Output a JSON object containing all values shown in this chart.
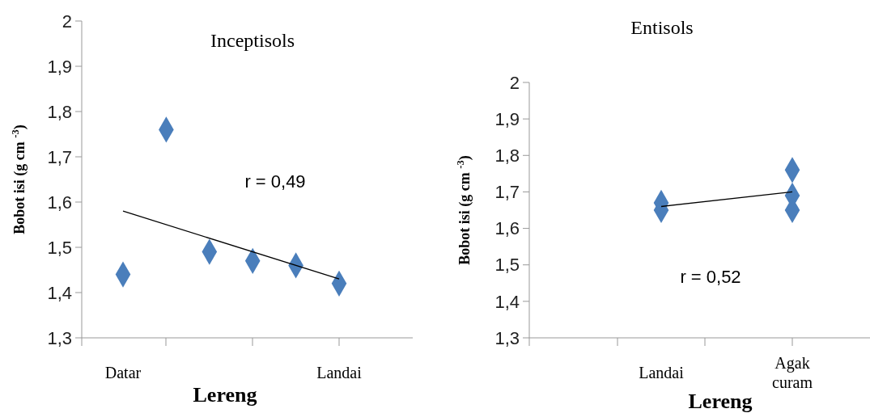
{
  "chart_data": [
    {
      "type": "scatter",
      "title": "Inceptisols",
      "xlabel": "Lereng",
      "ylabel": "Bobot isi (g cm $^{-3}$)",
      "categories": [
        "Datar",
        null,
        null,
        null,
        null,
        "Landai"
      ],
      "ylim": [
        1.3,
        2
      ],
      "yticks": [
        {
          "value": 1.3,
          "label": "1,3"
        },
        {
          "value": 1.4,
          "label": "1,4"
        },
        {
          "value": 1.5,
          "label": "1,5"
        },
        {
          "value": 1.6,
          "label": "1,6"
        },
        {
          "value": 1.7,
          "label": "1,7"
        },
        {
          "value": 1.8,
          "label": "1,8"
        },
        {
          "value": 1.9,
          "label": "1,9"
        },
        {
          "value": 2,
          "label": "2"
        }
      ],
      "marker": "diamond",
      "annotations": [
        "r = 0,49"
      ],
      "series": [
        {
          "type": "scatter",
          "color": "#4a7ebb",
          "values": [
            1.44,
            1.76,
            1.49,
            1.47,
            1.46,
            1.42
          ]
        },
        {
          "type": "line",
          "color": "#000000",
          "marker": "none",
          "x": [
            "Datar",
            "Landai"
          ],
          "values": [
            1.58,
            1.43
          ]
        }
      ]
    },
    {
      "type": "scatter",
      "title": "Entisols",
      "xlabel": "Lereng",
      "ylabel": "Bobot isi (g cm $^{-3}$)",
      "categories": [
        "Landai",
        "Agak curam"
      ],
      "ylim": [
        1.3,
        2
      ],
      "yticks": [
        {
          "value": 1.3,
          "label": "1,3"
        },
        {
          "value": 1.4,
          "label": "1,4"
        },
        {
          "value": 1.5,
          "label": "1,5"
        },
        {
          "value": 1.6,
          "label": "1,6"
        },
        {
          "value": 1.7,
          "label": "1,7"
        },
        {
          "value": 1.8,
          "label": "1,8"
        },
        {
          "value": 1.9,
          "label": "1,9"
        },
        {
          "value": 2,
          "label": "2"
        }
      ],
      "marker": "diamond",
      "annotations": [
        "r = 0,52"
      ],
      "series": [
        {
          "type": "scatter",
          "color": "#4a7ebb",
          "x": [
            "Landai",
            "Landai",
            "Agak curam",
            "Agak curam",
            "Agak curam"
          ],
          "values": [
            1.67,
            1.65,
            1.76,
            1.69,
            1.65
          ]
        },
        {
          "type": "line",
          "color": "#000000",
          "marker": "none",
          "x": [
            "Landai",
            "Agak curam"
          ],
          "values": [
            1.66,
            1.7
          ]
        }
      ]
    }
  ]
}
